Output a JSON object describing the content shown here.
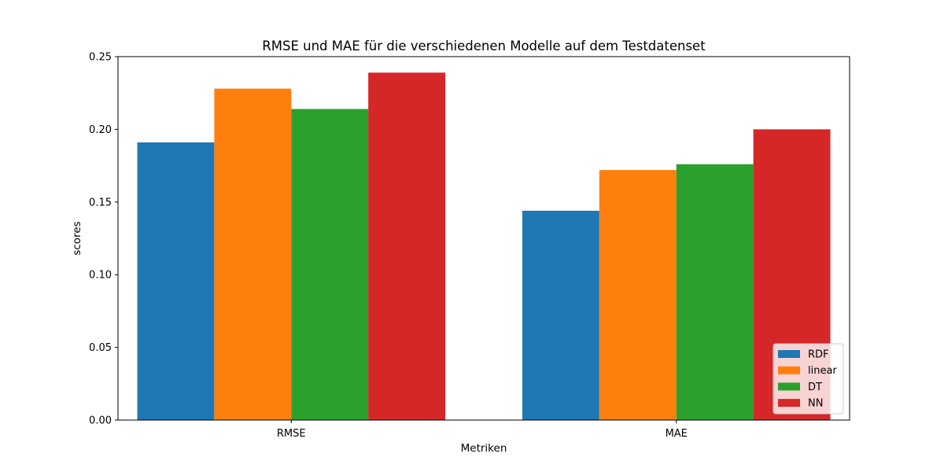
{
  "chart_data": {
    "type": "bar",
    "title": "RMSE und MAE für die verschiedenen Modelle auf dem Testdatenset",
    "xlabel": "Metriken",
    "ylabel": "scores",
    "categories": [
      "RMSE",
      "MAE"
    ],
    "ylim": [
      0,
      0.25
    ],
    "yticks": [
      "0.00",
      "0.05",
      "0.10",
      "0.15",
      "0.20",
      "0.25"
    ],
    "grid": false,
    "legend_position": "lower-right",
    "series": [
      {
        "name": "RDF",
        "color": "#1f77b4",
        "values": [
          0.191,
          0.144
        ]
      },
      {
        "name": "linear",
        "color": "#ff7f0e",
        "values": [
          0.228,
          0.172
        ]
      },
      {
        "name": "DT",
        "color": "#2ca02c",
        "values": [
          0.214,
          0.176
        ]
      },
      {
        "name": "NN",
        "color": "#d62728",
        "values": [
          0.239,
          0.2
        ]
      }
    ]
  }
}
